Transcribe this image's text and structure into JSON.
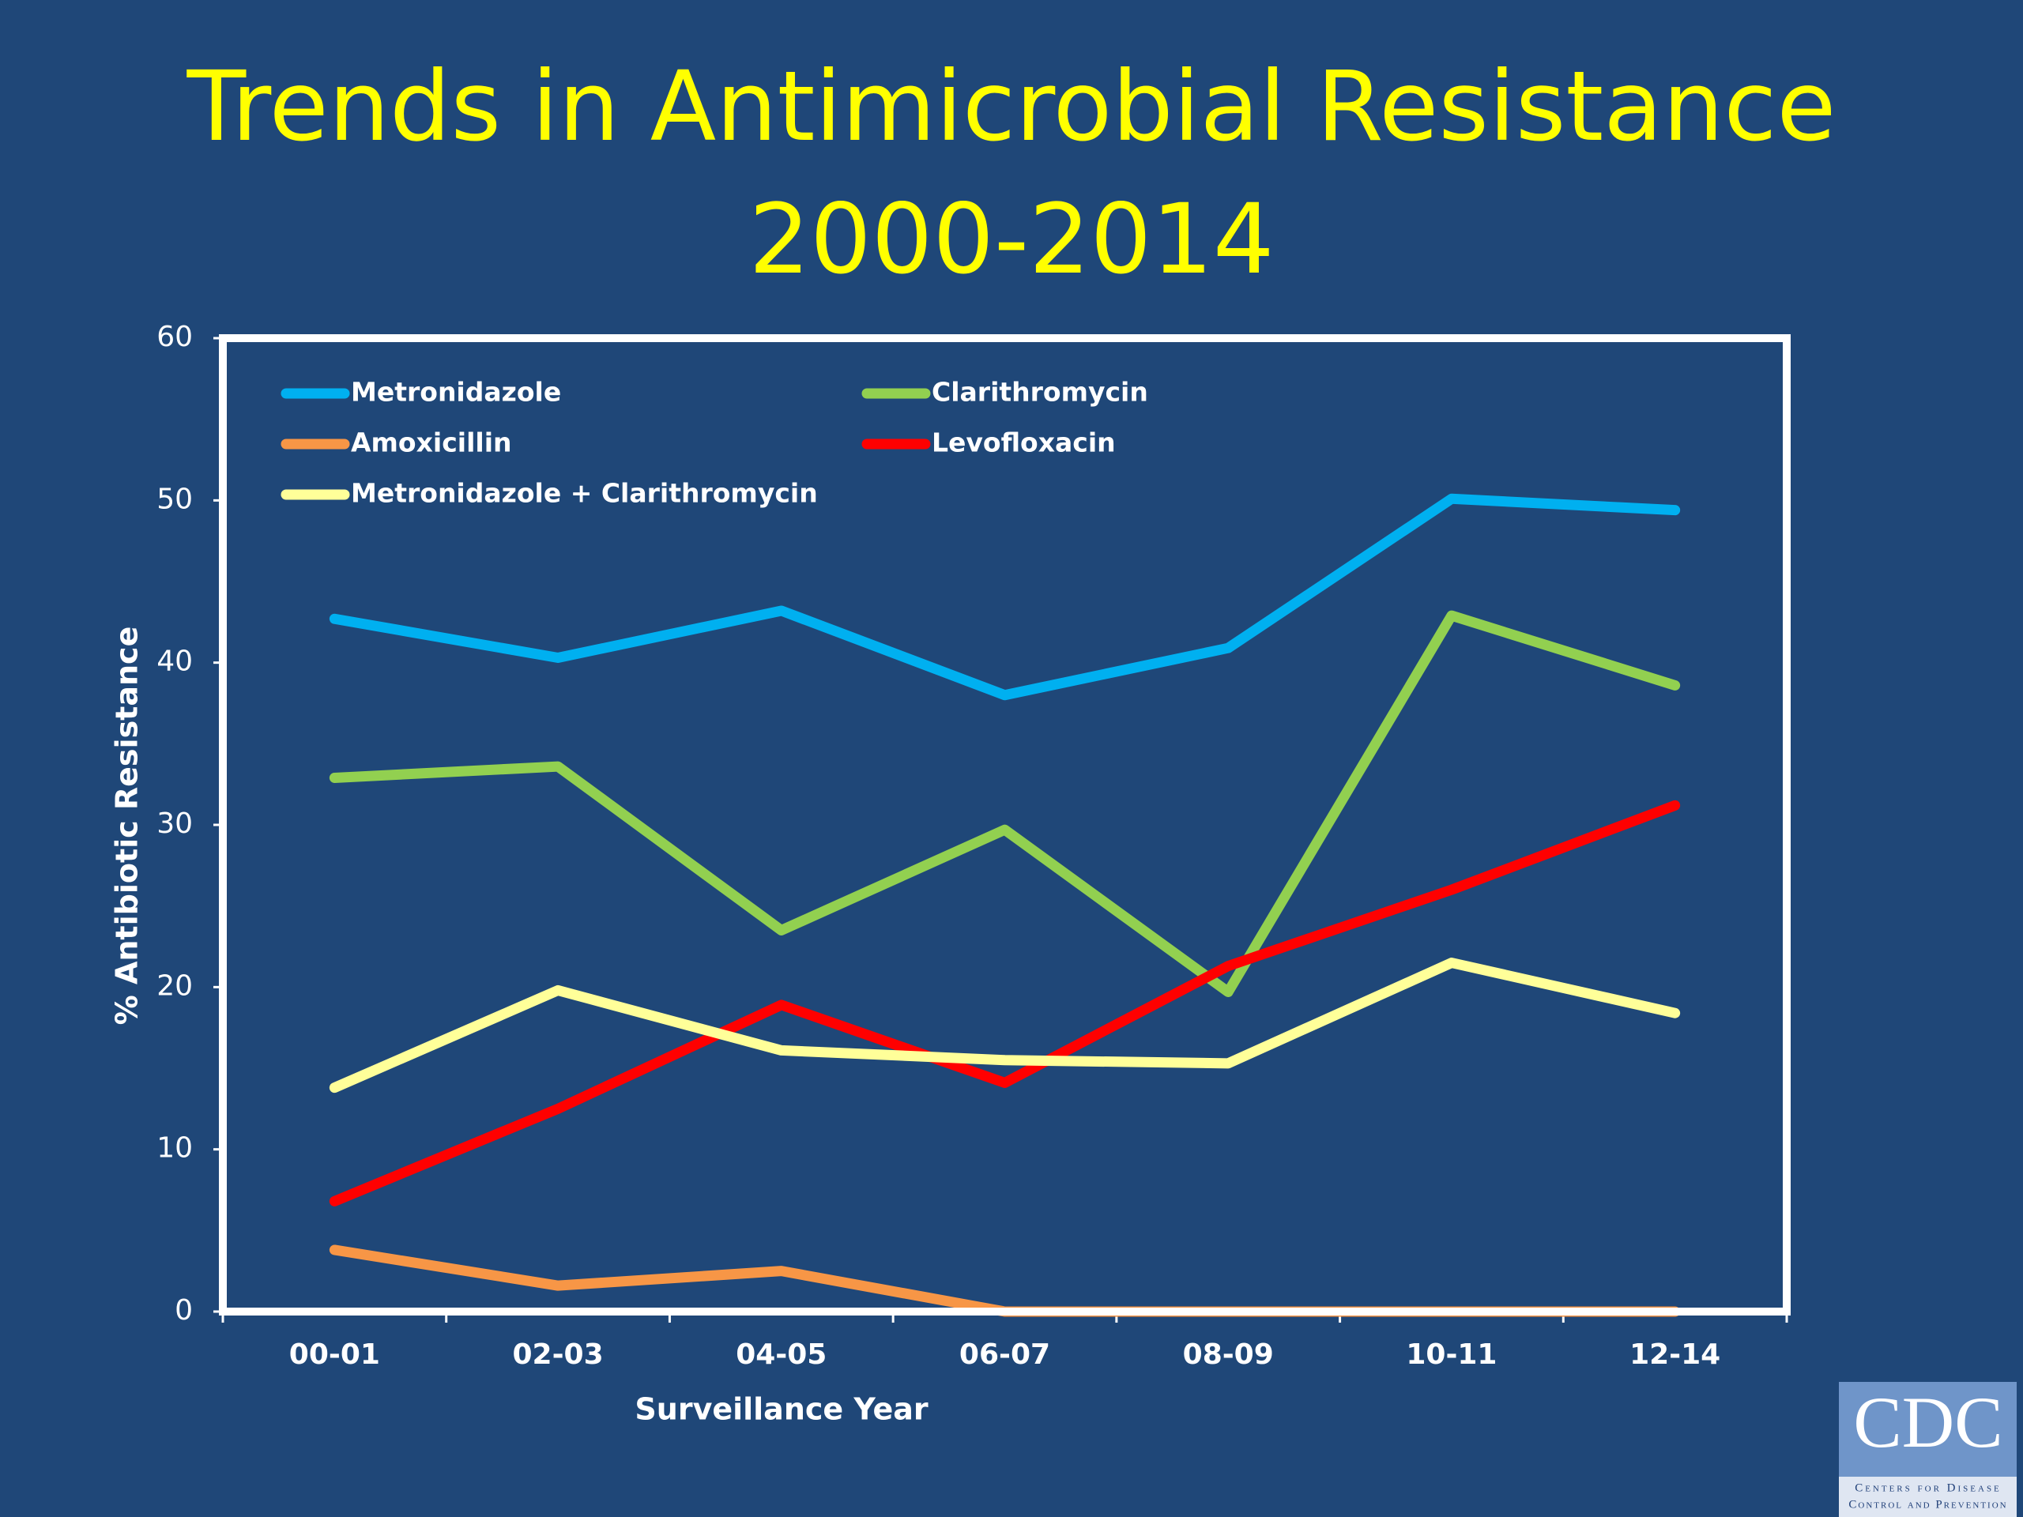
{
  "chart_data": {
    "type": "line",
    "title": "Trends in Antimicrobial Resistance",
    "subtitle": "2000-2014",
    "x_label": "Surveillance Year",
    "y_label": "% Antibiotic Resistance",
    "categories": [
      "00-01",
      "02-03",
      "04-05",
      "06-07",
      "08-09",
      "10-11",
      "12-14"
    ],
    "series": [
      {
        "name": "Metronidazole",
        "color": "#00b0f0",
        "values": [
          42.7,
          40.3,
          43.2,
          38.0,
          40.9,
          50.1,
          49.4
        ]
      },
      {
        "name": "Clarithromycin",
        "color": "#92d050",
        "values": [
          32.9,
          33.6,
          23.5,
          29.7,
          19.7,
          42.9,
          38.6
        ]
      },
      {
        "name": "Amoxicillin",
        "color": "#f79646",
        "values": [
          3.8,
          1.6,
          2.5,
          0,
          0,
          0,
          0
        ]
      },
      {
        "name": "Levofloxacin",
        "color": "#ff0000",
        "values": [
          6.8,
          12.5,
          18.9,
          14.1,
          21.3,
          26.0,
          31.2
        ]
      },
      {
        "name": "Metronidazole + Clarithromycin",
        "color": "#ffff99",
        "values": [
          13.8,
          19.8,
          16.1,
          15.5,
          15.3,
          21.5,
          18.4
        ]
      }
    ],
    "ylim": [
      0,
      60
    ],
    "yticks": [
      0,
      10,
      20,
      30,
      40,
      50,
      60
    ],
    "grid": false,
    "legend": "top-left"
  },
  "logo": {
    "text": "CDC",
    "lines": [
      "Centers for Disease",
      "Control and Prevention"
    ]
  }
}
